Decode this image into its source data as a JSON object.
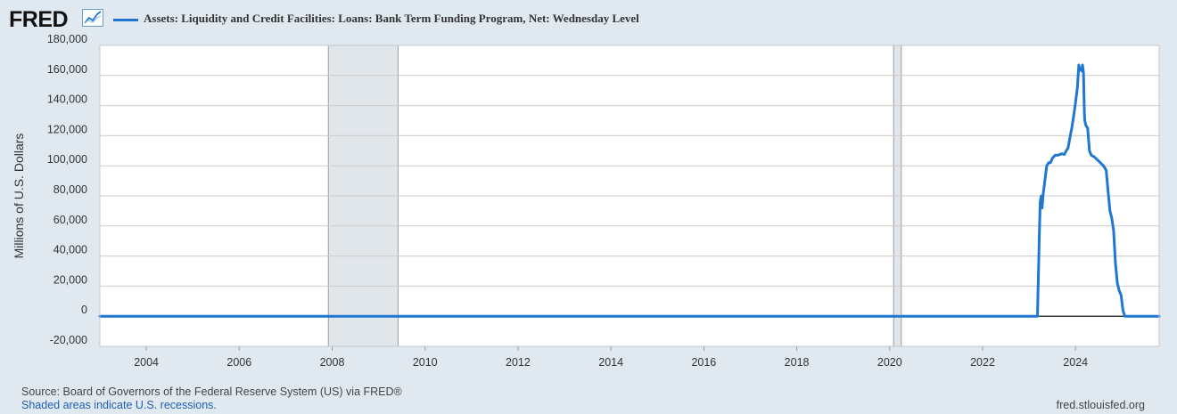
{
  "header": {
    "logo_text": "FRED",
    "logo_icon": "line-chart-icon",
    "series_label": "Assets: Liquidity and Credit Facilities: Loans: Bank Term Funding Program, Net: Wednesday Level"
  },
  "footer": {
    "source": "Source: Board of Governors of the Federal Reserve System (US) via FRED®",
    "recessions_note": "Shaded areas indicate U.S. recessions.",
    "site": "fred.stlouisfed.org"
  },
  "colors": {
    "series": "#1f77d1",
    "background": "#e1e9f0",
    "plot_background": "#ffffff",
    "recession_shade": "#e1e6ea",
    "zero_line": "#000000",
    "grid": "#cccccc"
  },
  "chart_data": {
    "type": "line",
    "ylabel": "Millions of U.S. Dollars",
    "xlabel": "",
    "title": "",
    "xlim": [
      2003.0,
      2025.8
    ],
    "ylim": [
      -20000,
      180000
    ],
    "x_ticks": [
      {
        "value": 2004,
        "label": "2004"
      },
      {
        "value": 2006,
        "label": "2006"
      },
      {
        "value": 2008,
        "label": "2008"
      },
      {
        "value": 2010,
        "label": "2010"
      },
      {
        "value": 2012,
        "label": "2012"
      },
      {
        "value": 2014,
        "label": "2014"
      },
      {
        "value": 2016,
        "label": "2016"
      },
      {
        "value": 2018,
        "label": "2018"
      },
      {
        "value": 2020,
        "label": "2020"
      },
      {
        "value": 2022,
        "label": "2022"
      },
      {
        "value": 2024,
        "label": "2024"
      }
    ],
    "y_ticks": [
      {
        "value": 180000,
        "label": "180,000"
      },
      {
        "value": 160000,
        "label": "160,000"
      },
      {
        "value": 140000,
        "label": "140,000"
      },
      {
        "value": 120000,
        "label": "120,000"
      },
      {
        "value": 100000,
        "label": "100,000"
      },
      {
        "value": 80000,
        "label": "80,000"
      },
      {
        "value": 60000,
        "label": "60,000"
      },
      {
        "value": 40000,
        "label": "40,000"
      },
      {
        "value": 20000,
        "label": "20,000"
      },
      {
        "value": 0,
        "label": "0"
      },
      {
        "value": -20000,
        "label": "-20,000"
      }
    ],
    "recessions": [
      {
        "start": "2007-12",
        "end": "2009-06"
      },
      {
        "start": "2020-02",
        "end": "2020-04"
      }
    ],
    "series": [
      {
        "name": "Assets: Liquidity and Credit Facilities: Loans: Bank Term Funding Program, Net: Wednesday Level",
        "color": "#1f77d1",
        "x": [
          2003.0,
          2023.18,
          2023.2,
          2023.22,
          2023.24,
          2023.26,
          2023.28,
          2023.3,
          2023.34,
          2023.38,
          2023.42,
          2023.46,
          2023.5,
          2023.56,
          2023.62,
          2023.7,
          2023.76,
          2023.8,
          2023.84,
          2023.88,
          2023.92,
          2023.96,
          2024.0,
          2024.04,
          2024.07,
          2024.09,
          2024.11,
          2024.13,
          2024.15,
          2024.17,
          2024.19,
          2024.2,
          2024.22,
          2024.26,
          2024.3,
          2024.34,
          2024.4,
          2024.5,
          2024.6,
          2024.66,
          2024.7,
          2024.74,
          2024.78,
          2024.82,
          2024.86,
          2024.9,
          2024.94,
          2024.98,
          2025.02,
          2025.06,
          2025.8
        ],
        "y": [
          0,
          0,
          25000,
          54000,
          76000,
          80000,
          72000,
          80000,
          90000,
          100000,
          102000,
          102000,
          105000,
          107000,
          107000,
          108000,
          107500,
          110000,
          112000,
          119000,
          125000,
          133000,
          142000,
          152000,
          167000,
          164000,
          164000,
          163000,
          167000,
          162000,
          135000,
          130000,
          127000,
          125000,
          110000,
          107000,
          106000,
          103000,
          100000,
          97000,
          83000,
          70000,
          65000,
          57000,
          35000,
          22000,
          17000,
          14000,
          4000,
          0,
          0
        ]
      }
    ]
  }
}
